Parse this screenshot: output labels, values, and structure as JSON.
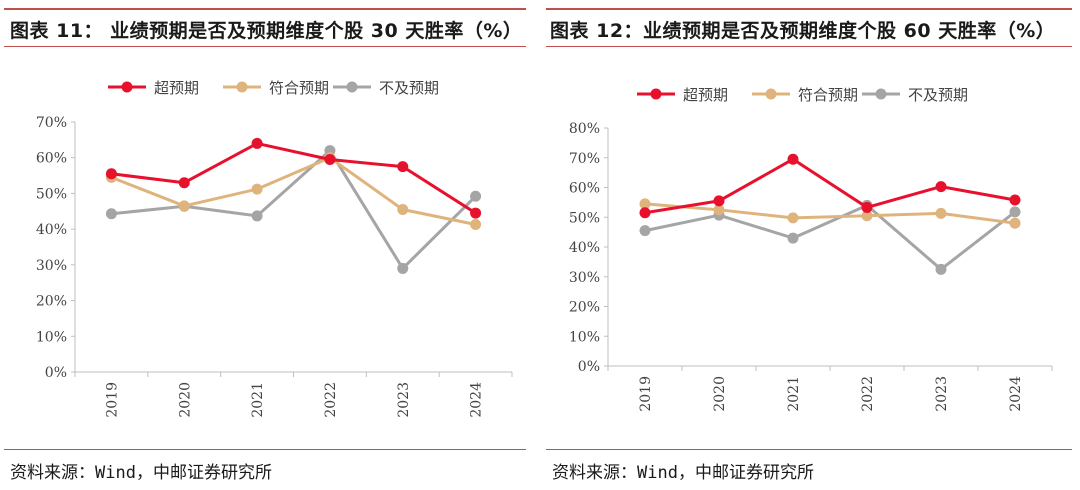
{
  "panels": [
    {
      "title": "图表 11：  业绩预期是否及预期维度个股 30 天胜率（%）",
      "source": "资料来源：Wind，中邮证券研究所"
    },
    {
      "title": "图表 12：业绩预期是否及预期维度个股 60 天胜率（%）",
      "source": "资料来源：Wind，中邮证券研究所"
    }
  ],
  "chart_data": [
    {
      "type": "line",
      "title": "业绩预期是否及预期维度个股 30 天胜率（%）",
      "categories": [
        "2019",
        "2020",
        "2021",
        "2022",
        "2023",
        "2024"
      ],
      "y_ticks": [
        "0%",
        "10%",
        "20%",
        "30%",
        "40%",
        "50%",
        "60%",
        "70%"
      ],
      "ylim": [
        0,
        70
      ],
      "legend_position": "top",
      "series": [
        {
          "name": "超预期",
          "color": "#e8112d",
          "values": [
            55.5,
            53.0,
            64.0,
            59.5,
            57.5,
            44.5
          ]
        },
        {
          "name": "符合预期",
          "color": "#dfb47c",
          "values": [
            54.5,
            46.5,
            51.2,
            60.0,
            45.5,
            41.3
          ]
        },
        {
          "name": "不及预期",
          "color": "#a5a5a5",
          "values": [
            44.3,
            46.4,
            43.7,
            62.0,
            29.0,
            49.2
          ]
        }
      ]
    },
    {
      "type": "line",
      "title": "业绩预期是否及预期维度个股 60 天胜率（%）",
      "categories": [
        "2019",
        "2020",
        "2021",
        "2022",
        "2023",
        "2024"
      ],
      "y_ticks": [
        "0%",
        "10%",
        "20%",
        "30%",
        "40%",
        "50%",
        "60%",
        "70%",
        "80%"
      ],
      "ylim": [
        0,
        80
      ],
      "legend_position": "top",
      "series": [
        {
          "name": "超预期",
          "color": "#e8112d",
          "values": [
            51.5,
            55.5,
            69.5,
            53.3,
            60.3,
            55.8
          ]
        },
        {
          "name": "符合预期",
          "color": "#dfb47c",
          "values": [
            54.5,
            52.5,
            49.8,
            50.5,
            51.3,
            48.0
          ]
        },
        {
          "name": "不及预期",
          "color": "#a5a5a5",
          "values": [
            45.5,
            50.7,
            43.0,
            54.0,
            32.5,
            51.8
          ]
        }
      ]
    }
  ]
}
